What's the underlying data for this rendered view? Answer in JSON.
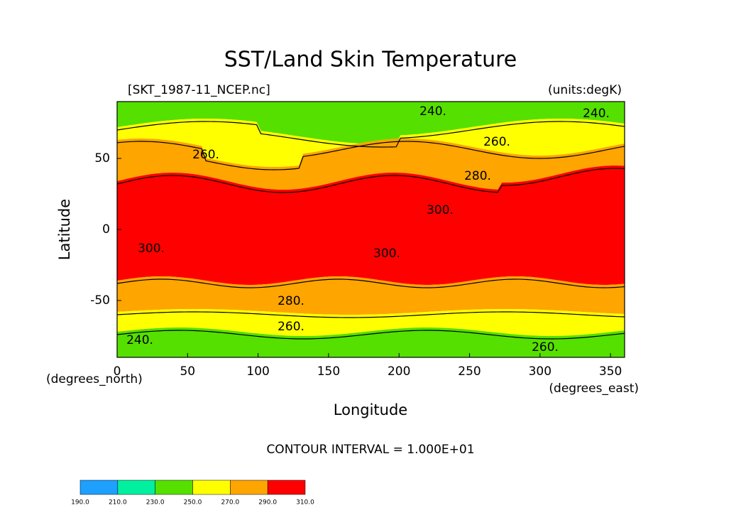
{
  "chart_data": {
    "type": "contour-map",
    "title": "SST/Land Skin Temperature",
    "subtitle_left": "[SKT_1987-11_NCEP.nc]",
    "subtitle_right": "(units:degK)",
    "xlabel": "Longitude",
    "ylabel": "Latitude",
    "x_units": "(degrees_east)",
    "y_units": "(degrees_north)",
    "contour_interval": "CONTOUR INTERVAL = 1.000E+01",
    "xlim": [
      0,
      360
    ],
    "ylim": [
      -90,
      90
    ],
    "xticks": [
      0,
      50,
      100,
      150,
      200,
      250,
      300,
      350
    ],
    "yticks": [
      -50,
      0,
      50
    ],
    "contour_labels": [
      "240.",
      "240.",
      "260.",
      "260.",
      "280.",
      "300.",
      "300.",
      "300.",
      "280.",
      "260.",
      "240.",
      "260."
    ],
    "colorbar": {
      "levels": [
        {
          "value": 190,
          "label": "190.0"
        },
        {
          "value": 210,
          "label": "210.0"
        },
        {
          "value": 230,
          "label": "230.0"
        },
        {
          "value": 250,
          "label": "250.0"
        },
        {
          "value": 270,
          "label": "270.0"
        },
        {
          "value": 290,
          "label": "290.0"
        },
        {
          "value": 310,
          "label": "310.0"
        }
      ],
      "colors": [
        "#1ea0ff",
        "#00f0a0",
        "#55e000",
        "#ffff00",
        "#ffa500",
        "#ff0000"
      ]
    }
  }
}
